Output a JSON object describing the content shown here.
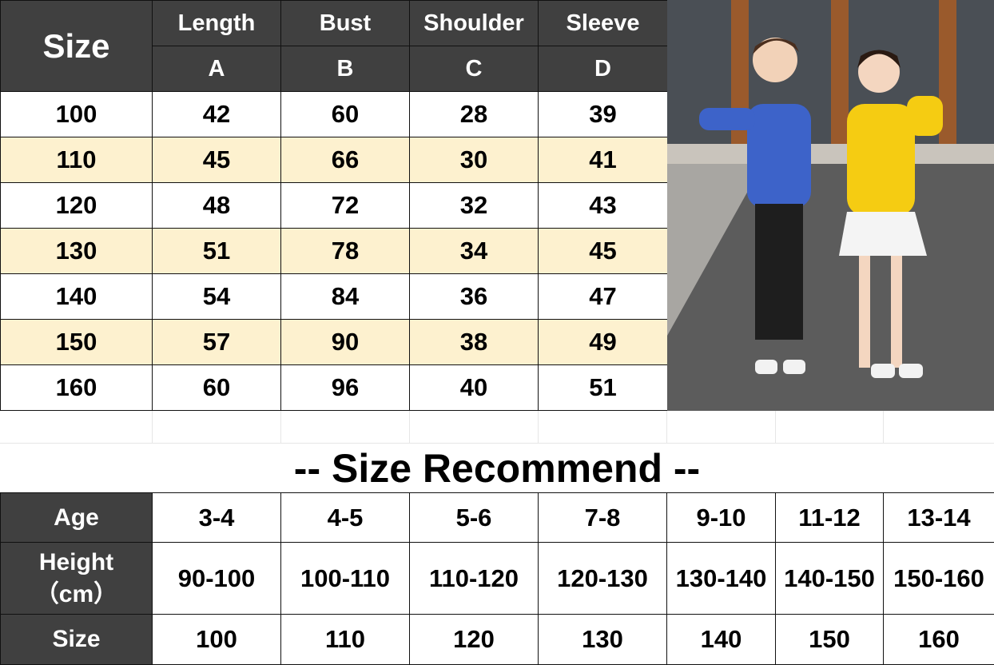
{
  "size_chart": {
    "headers": [
      {
        "label": "Length",
        "code": "A"
      },
      {
        "label": "Bust",
        "code": "B"
      },
      {
        "label": "Shoulder",
        "code": "C"
      },
      {
        "label": "Sleeve",
        "code": "D"
      }
    ],
    "size_label": "Size",
    "rows": [
      [
        "100",
        "42",
        "60",
        "28",
        "39"
      ],
      [
        "110",
        "45",
        "66",
        "30",
        "41"
      ],
      [
        "120",
        "48",
        "72",
        "32",
        "43"
      ],
      [
        "130",
        "51",
        "78",
        "34",
        "45"
      ],
      [
        "140",
        "54",
        "84",
        "36",
        "47"
      ],
      [
        "150",
        "57",
        "90",
        "38",
        "49"
      ],
      [
        "160",
        "60",
        "96",
        "40",
        "51"
      ]
    ],
    "colors": {
      "header_bg": "#404040",
      "alt_row_bg": "#fdf1cf"
    }
  },
  "recommend": {
    "title": "-- Size Recommend --",
    "age_label": "Age",
    "height_label": "Height",
    "height_unit": "（cm）",
    "size_label": "Size",
    "ages": [
      "3-4",
      "4-5",
      "5-6",
      "7-8",
      "9-10",
      "11-12",
      "13-14"
    ],
    "heights": [
      "90-100",
      "100-110",
      "110-120",
      "120-130",
      "130-140",
      "140-150",
      "150-160"
    ],
    "sizes": [
      "100",
      "110",
      "120",
      "130",
      "140",
      "150",
      "160"
    ]
  },
  "photo": {
    "description_icon": "kids-in-hoodies-photo"
  }
}
